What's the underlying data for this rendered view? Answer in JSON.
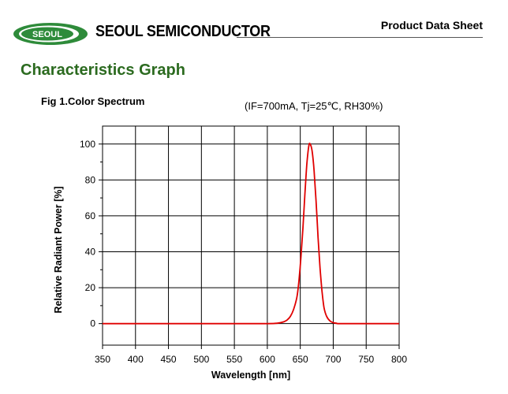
{
  "header": {
    "logo_text": "SEOUL",
    "company": "SEOUL SEMICONDUCTOR",
    "doc_title": "Product Data Sheet",
    "colors": {
      "logo_green": "#2e8b3a",
      "title_green": "#2b6a1f"
    }
  },
  "section_title": "Characteristics Graph",
  "figure": {
    "title": "Fig 1.Color Spectrum",
    "conditions": "(IF=700mA, Tj=25℃, RH30%)"
  },
  "chart_data": {
    "type": "line",
    "title": "Fig 1.Color Spectrum",
    "xlabel": "Wavelength [nm]",
    "ylabel": "Relative Radiant Power [%]",
    "xlim": [
      350,
      800
    ],
    "ylim": [
      -12,
      110
    ],
    "xticks": [
      350,
      400,
      450,
      500,
      550,
      600,
      650,
      700,
      750,
      800
    ],
    "yticks": [
      0,
      20,
      40,
      60,
      80,
      100
    ],
    "grid": true,
    "series": [
      {
        "color": "#e00000",
        "x": [
          350,
          400,
          450,
          500,
          550,
          600,
          615,
          625,
          630,
          635,
          640,
          645,
          648,
          651,
          654,
          657,
          660,
          663,
          665,
          668,
          671,
          674,
          677,
          680,
          683,
          686,
          690,
          695,
          700,
          705,
          710,
          750,
          800
        ],
        "y": [
          0,
          0,
          0,
          0,
          0,
          0,
          0.2,
          1,
          2,
          4,
          8,
          15,
          24,
          37,
          53,
          72,
          89,
          99,
          100,
          96,
          85,
          68,
          48,
          31,
          18,
          9,
          4,
          1.5,
          0.5,
          0.2,
          0,
          0,
          0
        ]
      }
    ]
  }
}
